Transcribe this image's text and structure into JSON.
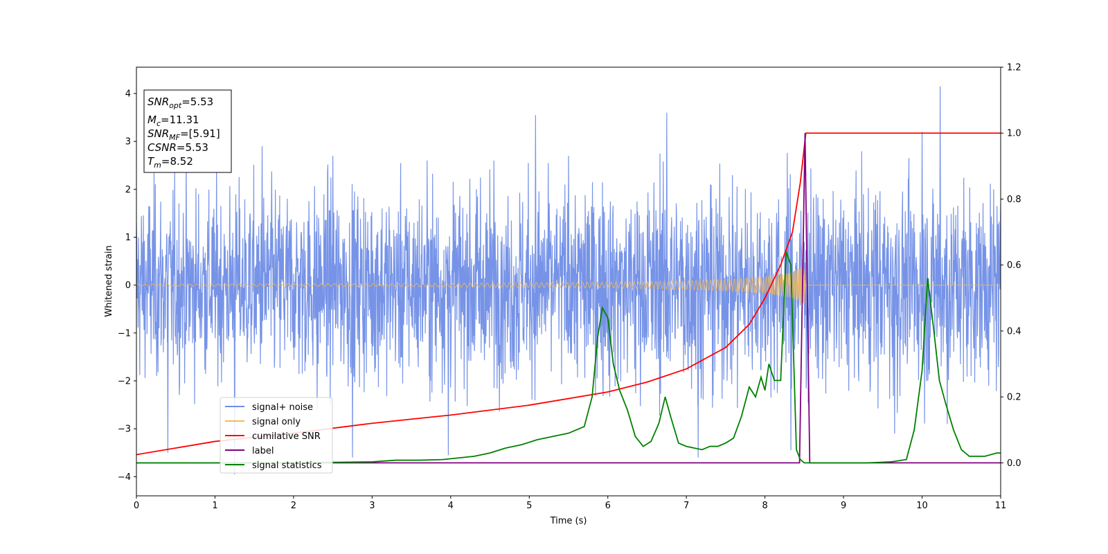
{
  "chart_data": {
    "type": "line",
    "xlabel": "Time (s)",
    "ylabel": "Whitened strain",
    "xlim": [
      0,
      11
    ],
    "ylim_left": [
      -4.4,
      4.55
    ],
    "ylim_right": [
      -0.1,
      1.2
    ],
    "x_ticks": [
      "0",
      "1",
      "2",
      "3",
      "4",
      "5",
      "6",
      "7",
      "8",
      "9",
      "10",
      "11"
    ],
    "y_ticks_left": [
      "−4",
      "−3",
      "−2",
      "−1",
      "0",
      "1",
      "2",
      "3",
      "4"
    ],
    "y_ticks_right": [
      "0.0",
      "0.2",
      "0.4",
      "0.6",
      "0.8",
      "1.0",
      "1.2"
    ],
    "legend_position": "lower-left",
    "annotation": {
      "lines": [
        {
          "base": "SNR",
          "sub": "opt",
          "rest": "=5.53"
        },
        {
          "base": "M",
          "sub": "c",
          "rest": "=11.31"
        },
        {
          "base": "SNR",
          "sub": "MF",
          "rest": "=[5.91]"
        },
        {
          "base": "CSNR",
          "sub": "",
          "rest": "=5.53"
        },
        {
          "base": "T",
          "sub": "m",
          "rest": "=8.52"
        }
      ]
    },
    "series": [
      {
        "name": "signal+ noise",
        "axis": "left",
        "color": "#6f8de6",
        "description_only": true,
        "amplitude_envelope": [
          [
            0,
            2.2
          ],
          [
            5.5,
            2.3
          ],
          [
            6.8,
            2.5
          ],
          [
            8.5,
            2.3
          ],
          [
            10.2,
            2.4
          ],
          [
            11,
            2.2
          ]
        ],
        "spikes": [
          [
            0.4,
            -3.5
          ],
          [
            1.25,
            -3.95
          ],
          [
            1.6,
            2.9
          ],
          [
            2.3,
            -2.6
          ],
          [
            2.5,
            2.7
          ],
          [
            2.75,
            -3.6
          ],
          [
            3.7,
            2.6
          ],
          [
            3.97,
            -3.55
          ],
          [
            4.55,
            2.6
          ],
          [
            5.08,
            3.55
          ],
          [
            5.5,
            2.7
          ],
          [
            6.75,
            3.6
          ],
          [
            7.15,
            -3.6
          ],
          [
            8.33,
            -3.45
          ],
          [
            9.65,
            -3.1
          ],
          [
            10.0,
            3.2
          ],
          [
            10.23,
            4.15
          ],
          [
            10.32,
            -2.9
          ]
        ]
      },
      {
        "name": "signal only",
        "axis": "left",
        "color": "#f5b957",
        "envelope": [
          [
            0,
            0.02
          ],
          [
            3,
            0.03
          ],
          [
            5,
            0.05
          ],
          [
            6,
            0.06
          ],
          [
            7,
            0.09
          ],
          [
            7.5,
            0.12
          ],
          [
            8,
            0.18
          ],
          [
            8.3,
            0.26
          ],
          [
            8.5,
            0.4
          ],
          [
            8.52,
            0
          ],
          [
            11,
            0
          ]
        ]
      },
      {
        "name": "cumilative SNR",
        "axis": "right",
        "color": "#ff0000",
        "x": [
          0,
          1,
          2,
          3,
          4,
          5,
          6,
          6.5,
          7,
          7.5,
          7.8,
          8.0,
          8.2,
          8.35,
          8.45,
          8.52,
          8.55,
          9,
          10,
          11
        ],
        "y": [
          0.025,
          0.065,
          0.09,
          0.12,
          0.145,
          0.175,
          0.215,
          0.245,
          0.285,
          0.35,
          0.42,
          0.5,
          0.6,
          0.7,
          0.85,
          1.0,
          1.0,
          1.0,
          1.0,
          1.0
        ]
      },
      {
        "name": "label",
        "axis": "right",
        "color": "#800080",
        "x": [
          0,
          8.44,
          8.51,
          8.57,
          11
        ],
        "y": [
          0,
          0,
          1.0,
          0,
          0
        ]
      },
      {
        "name": "signal statistics",
        "axis": "right",
        "color": "#008000",
        "x": [
          0,
          1,
          2,
          3,
          3.3,
          3.6,
          3.9,
          4.1,
          4.3,
          4.5,
          4.7,
          4.9,
          5.1,
          5.3,
          5.5,
          5.7,
          5.8,
          5.87,
          5.93,
          6.0,
          6.07,
          6.15,
          6.25,
          6.35,
          6.45,
          6.55,
          6.65,
          6.73,
          6.8,
          6.9,
          7.0,
          7.1,
          7.2,
          7.3,
          7.4,
          7.5,
          7.6,
          7.7,
          7.8,
          7.88,
          7.95,
          8.0,
          8.05,
          8.12,
          8.2,
          8.27,
          8.33,
          8.4,
          8.45,
          8.5,
          8.55,
          8.7,
          9.0,
          9.3,
          9.6,
          9.8,
          9.9,
          10.0,
          10.07,
          10.15,
          10.22,
          10.3,
          10.4,
          10.5,
          10.6,
          10.8,
          10.95,
          11
        ],
        "y": [
          0,
          0,
          0,
          0.003,
          0.008,
          0.008,
          0.01,
          0.015,
          0.02,
          0.03,
          0.045,
          0.055,
          0.07,
          0.08,
          0.09,
          0.11,
          0.2,
          0.38,
          0.47,
          0.44,
          0.3,
          0.22,
          0.16,
          0.08,
          0.05,
          0.065,
          0.12,
          0.2,
          0.14,
          0.06,
          0.05,
          0.045,
          0.04,
          0.05,
          0.05,
          0.06,
          0.075,
          0.14,
          0.23,
          0.2,
          0.26,
          0.22,
          0.3,
          0.25,
          0.25,
          0.64,
          0.6,
          0.04,
          0.01,
          0,
          0,
          0,
          0,
          0,
          0.003,
          0.01,
          0.1,
          0.28,
          0.56,
          0.4,
          0.25,
          0.18,
          0.1,
          0.04,
          0.02,
          0.02,
          0.03,
          0.03
        ]
      }
    ]
  }
}
